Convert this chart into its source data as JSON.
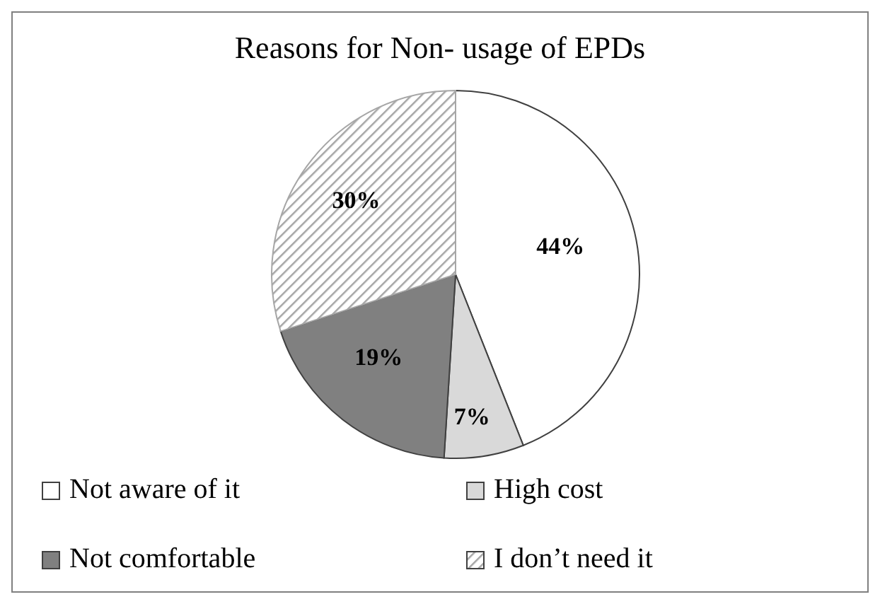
{
  "chart_data": {
    "type": "pie",
    "title": "Reasons for Non- usage of EPDs",
    "categories": [
      "Not aware of it",
      "High cost",
      "Not comfortable",
      "I don’t need it"
    ],
    "values": [
      44,
      7,
      19,
      30
    ],
    "colors": [
      "#ffffff",
      "#d9d9d9",
      "#808080",
      "#a6a6a6"
    ],
    "value_labels": [
      "44%",
      "7%",
      "19%",
      "30%"
    ],
    "legend": "bottom"
  }
}
